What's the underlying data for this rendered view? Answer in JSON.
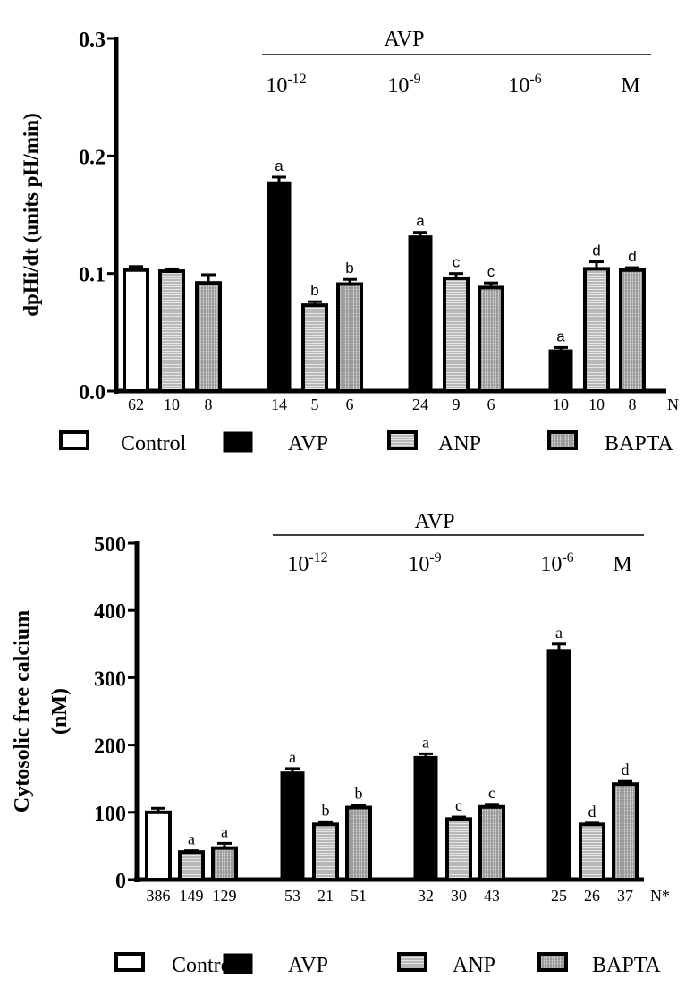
{
  "chart_data": [
    {
      "type": "bar",
      "title": "",
      "ylabel": "dpHi/dt (units pH/min)",
      "xlabel": "",
      "ylim": [
        0,
        0.3
      ],
      "yticks": [
        "0.0",
        "0.1",
        "0.2",
        "0.3"
      ],
      "ytick_values": [
        0,
        0.1,
        0.2,
        0.3
      ],
      "group_header": "AVP",
      "groups": [
        {
          "label": "",
          "sup": ""
        },
        {
          "label": "10",
          "sup": "-12"
        },
        {
          "label": "10",
          "sup": "-9"
        },
        {
          "label": "10",
          "sup": "-6"
        }
      ],
      "unit_label": "M",
      "n_label": "N",
      "bars": [
        {
          "group": 0,
          "series": "Control",
          "value": 0.103,
          "error": 0.003,
          "n": "62",
          "letter": ""
        },
        {
          "group": 0,
          "series": "ANP",
          "value": 0.102,
          "error": 0.002,
          "n": "10",
          "letter": ""
        },
        {
          "group": 0,
          "series": "BAPTA",
          "value": 0.092,
          "error": 0.007,
          "n": "8",
          "letter": ""
        },
        {
          "group": 1,
          "series": "AVP",
          "value": 0.178,
          "error": 0.004,
          "n": "14",
          "letter": "a"
        },
        {
          "group": 1,
          "series": "ANP",
          "value": 0.073,
          "error": 0.003,
          "n": "5",
          "letter": "b"
        },
        {
          "group": 1,
          "series": "BAPTA",
          "value": 0.091,
          "error": 0.004,
          "n": "6",
          "letter": "b"
        },
        {
          "group": 2,
          "series": "AVP",
          "value": 0.132,
          "error": 0.003,
          "n": "24",
          "letter": "a"
        },
        {
          "group": 2,
          "series": "ANP",
          "value": 0.096,
          "error": 0.004,
          "n": "9",
          "letter": "c"
        },
        {
          "group": 2,
          "series": "BAPTA",
          "value": 0.088,
          "error": 0.004,
          "n": "6",
          "letter": "c"
        },
        {
          "group": 3,
          "series": "AVP",
          "value": 0.035,
          "error": 0.002,
          "n": "10",
          "letter": "a"
        },
        {
          "group": 3,
          "series": "ANP",
          "value": 0.104,
          "error": 0.006,
          "n": "10",
          "letter": "d"
        },
        {
          "group": 3,
          "series": "BAPTA",
          "value": 0.103,
          "error": 0.002,
          "n": "8",
          "letter": "d"
        }
      ],
      "legend": [
        "Control",
        "AVP",
        "ANP",
        "BAPTA"
      ],
      "legend_position": "bottom",
      "grid": false
    },
    {
      "type": "bar",
      "title": "",
      "ylabel": "Cytosolic free calcium",
      "ylabel2": "(nM)",
      "xlabel": "",
      "ylim": [
        0,
        500
      ],
      "yticks": [
        "0",
        "100",
        "200",
        "300",
        "400",
        "500"
      ],
      "ytick_values": [
        0,
        100,
        200,
        300,
        400,
        500
      ],
      "group_header": "AVP",
      "groups": [
        {
          "label": "",
          "sup": ""
        },
        {
          "label": "10",
          "sup": "-12"
        },
        {
          "label": "10",
          "sup": "-9"
        },
        {
          "label": "10",
          "sup": "-6"
        }
      ],
      "unit_label": "M",
      "n_label": "N*",
      "bars": [
        {
          "group": 0,
          "series": "Control",
          "value": 100,
          "error": 6,
          "n": "386",
          "letter": ""
        },
        {
          "group": 0,
          "series": "ANP",
          "value": 41,
          "error": 2,
          "n": "149",
          "letter": "a"
        },
        {
          "group": 0,
          "series": "BAPTA",
          "value": 47,
          "error": 7,
          "n": "129",
          "letter": "a"
        },
        {
          "group": 1,
          "series": "AVP",
          "value": 160,
          "error": 5,
          "n": "53",
          "letter": "a"
        },
        {
          "group": 1,
          "series": "ANP",
          "value": 82,
          "error": 4,
          "n": "21",
          "letter": "b"
        },
        {
          "group": 1,
          "series": "BAPTA",
          "value": 107,
          "error": 4,
          "n": "51",
          "letter": "b"
        },
        {
          "group": 2,
          "series": "AVP",
          "value": 183,
          "error": 4,
          "n": "32",
          "letter": "a"
        },
        {
          "group": 2,
          "series": "ANP",
          "value": 90,
          "error": 3,
          "n": "30",
          "letter": "c"
        },
        {
          "group": 2,
          "series": "BAPTA",
          "value": 108,
          "error": 4,
          "n": "43",
          "letter": "c"
        },
        {
          "group": 3,
          "series": "AVP",
          "value": 342,
          "error": 8,
          "n": "25",
          "letter": "a"
        },
        {
          "group": 3,
          "series": "ANP",
          "value": 82,
          "error": 2,
          "n": "26",
          "letter": "d"
        },
        {
          "group": 3,
          "series": "BAPTA",
          "value": 142,
          "error": 4,
          "n": "37",
          "letter": "d"
        }
      ],
      "legend": [
        "Control",
        "AVP",
        "ANP",
        "BAPTA"
      ],
      "legend_position": "bottom",
      "grid": false
    }
  ]
}
